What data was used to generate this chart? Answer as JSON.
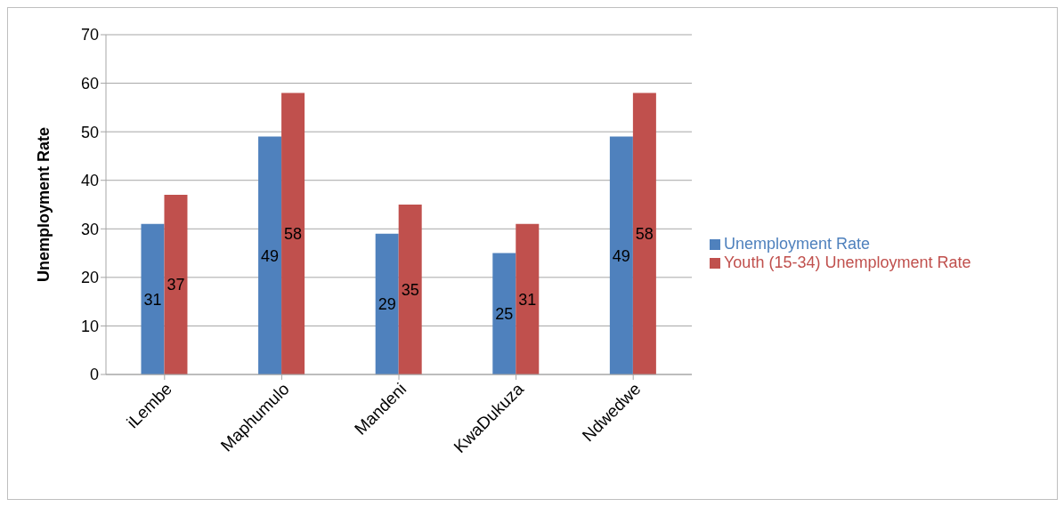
{
  "chart_data": {
    "type": "bar",
    "ylabel": "Unemployment Rate",
    "categories": [
      "iLembe",
      "Maphumulo",
      "Mandeni",
      "KwaDukuza",
      "Ndwedwe"
    ],
    "series": [
      {
        "name": "Unemployment Rate",
        "color": "#4f81bd",
        "values": [
          31,
          49,
          29,
          25,
          49
        ]
      },
      {
        "name": "Youth (15-34) Unemployment Rate",
        "color": "#c0504d",
        "values": [
          37,
          58,
          35,
          31,
          58
        ]
      }
    ],
    "ylim": [
      0,
      70
    ],
    "yticks": [
      0,
      10,
      20,
      30,
      40,
      50,
      60,
      70
    ],
    "grid": "y",
    "legend": "right",
    "data_labels": true
  }
}
